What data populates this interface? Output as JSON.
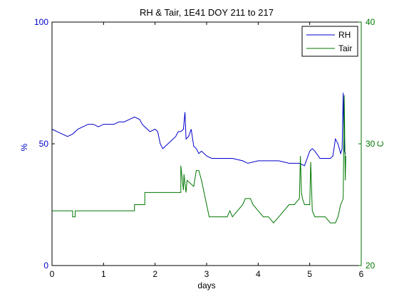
{
  "chart_data": {
    "type": "line",
    "title": "RH & Tair, 1E41 DOY 211 to 217",
    "xlabel": "days",
    "ylabel_left": "%",
    "ylabel_right": "C",
    "xlim": [
      0,
      6
    ],
    "ylim_left": [
      0,
      100
    ],
    "ylim_right": [
      20,
      40
    ],
    "xticks": [
      "0",
      "1",
      "2",
      "3",
      "4",
      "5",
      "6"
    ],
    "yticks_left": [
      "0",
      "50",
      "100"
    ],
    "yticks_right": [
      "20",
      "30",
      "40"
    ],
    "grid": false,
    "legend_position": "top-right",
    "colors": {
      "rh": "#0000cc",
      "tair": "#007700",
      "axes": "#000000"
    },
    "series": [
      {
        "name": "RH",
        "axis": "left",
        "x": [
          0,
          0.1,
          0.2,
          0.3,
          0.4,
          0.5,
          0.6,
          0.7,
          0.8,
          0.9,
          1.0,
          1.1,
          1.2,
          1.3,
          1.4,
          1.5,
          1.6,
          1.7,
          1.75,
          1.8,
          1.9,
          2.0,
          2.05,
          2.1,
          2.15,
          2.2,
          2.3,
          2.4,
          2.45,
          2.5,
          2.55,
          2.58,
          2.6,
          2.65,
          2.7,
          2.75,
          2.8,
          2.85,
          2.9,
          3.0,
          3.1,
          3.3,
          3.5,
          3.7,
          3.8,
          4.0,
          4.2,
          4.4,
          4.6,
          4.8,
          4.9,
          5.0,
          5.05,
          5.1,
          5.2,
          5.3,
          5.4,
          5.45,
          5.5,
          5.55,
          5.6,
          5.63,
          5.65,
          5.67,
          5.7
        ],
        "y": [
          56,
          55,
          54,
          53,
          54,
          56,
          57,
          58,
          58,
          57,
          58,
          58,
          58,
          59,
          59,
          60,
          61,
          60,
          58,
          57,
          55,
          56,
          55,
          50,
          48,
          49,
          51,
          53,
          55,
          55,
          56,
          63,
          52,
          53,
          56,
          49,
          48,
          46,
          47,
          45,
          44,
          44,
          44,
          43,
          42,
          43,
          43,
          43,
          42,
          42,
          41,
          47,
          48,
          47,
          44,
          44,
          44,
          45,
          52,
          50,
          46,
          48,
          71,
          47,
          46
        ]
      },
      {
        "name": "Tair",
        "axis": "right",
        "x": [
          0,
          0.4,
          0.4,
          0.45,
          0.45,
          1.6,
          1.6,
          1.8,
          1.8,
          2.0,
          2.0,
          2.5,
          2.5,
          2.55,
          2.56,
          2.6,
          2.62,
          2.75,
          2.8,
          2.85,
          2.9,
          2.95,
          3.0,
          3.05,
          3.1,
          3.4,
          3.45,
          3.5,
          3.6,
          3.7,
          3.75,
          3.85,
          3.9,
          4.0,
          4.1,
          4.2,
          4.3,
          4.4,
          4.5,
          4.6,
          4.7,
          4.8,
          4.82,
          4.84,
          4.86,
          4.9,
          5.0,
          5.02,
          5.05,
          5.1,
          5.2,
          5.3,
          5.4,
          5.5,
          5.55,
          5.6,
          5.65,
          5.67,
          5.69,
          5.7
        ],
        "y": [
          24.5,
          24.5,
          24,
          24,
          24.5,
          24.5,
          25,
          25,
          26,
          26,
          26,
          26,
          28.2,
          26.2,
          27.5,
          26,
          27,
          26.5,
          27.8,
          27.8,
          27,
          26,
          25,
          24,
          24,
          24,
          24.5,
          24,
          24.5,
          25,
          25.5,
          25.5,
          25,
          24.5,
          24,
          24,
          23.5,
          24,
          24.5,
          25,
          25,
          25.5,
          29,
          26,
          25.5,
          25,
          25,
          28.5,
          24.5,
          24,
          24,
          24,
          23.5,
          23.5,
          24,
          25,
          25.5,
          34,
          27,
          29
        ]
      }
    ]
  }
}
